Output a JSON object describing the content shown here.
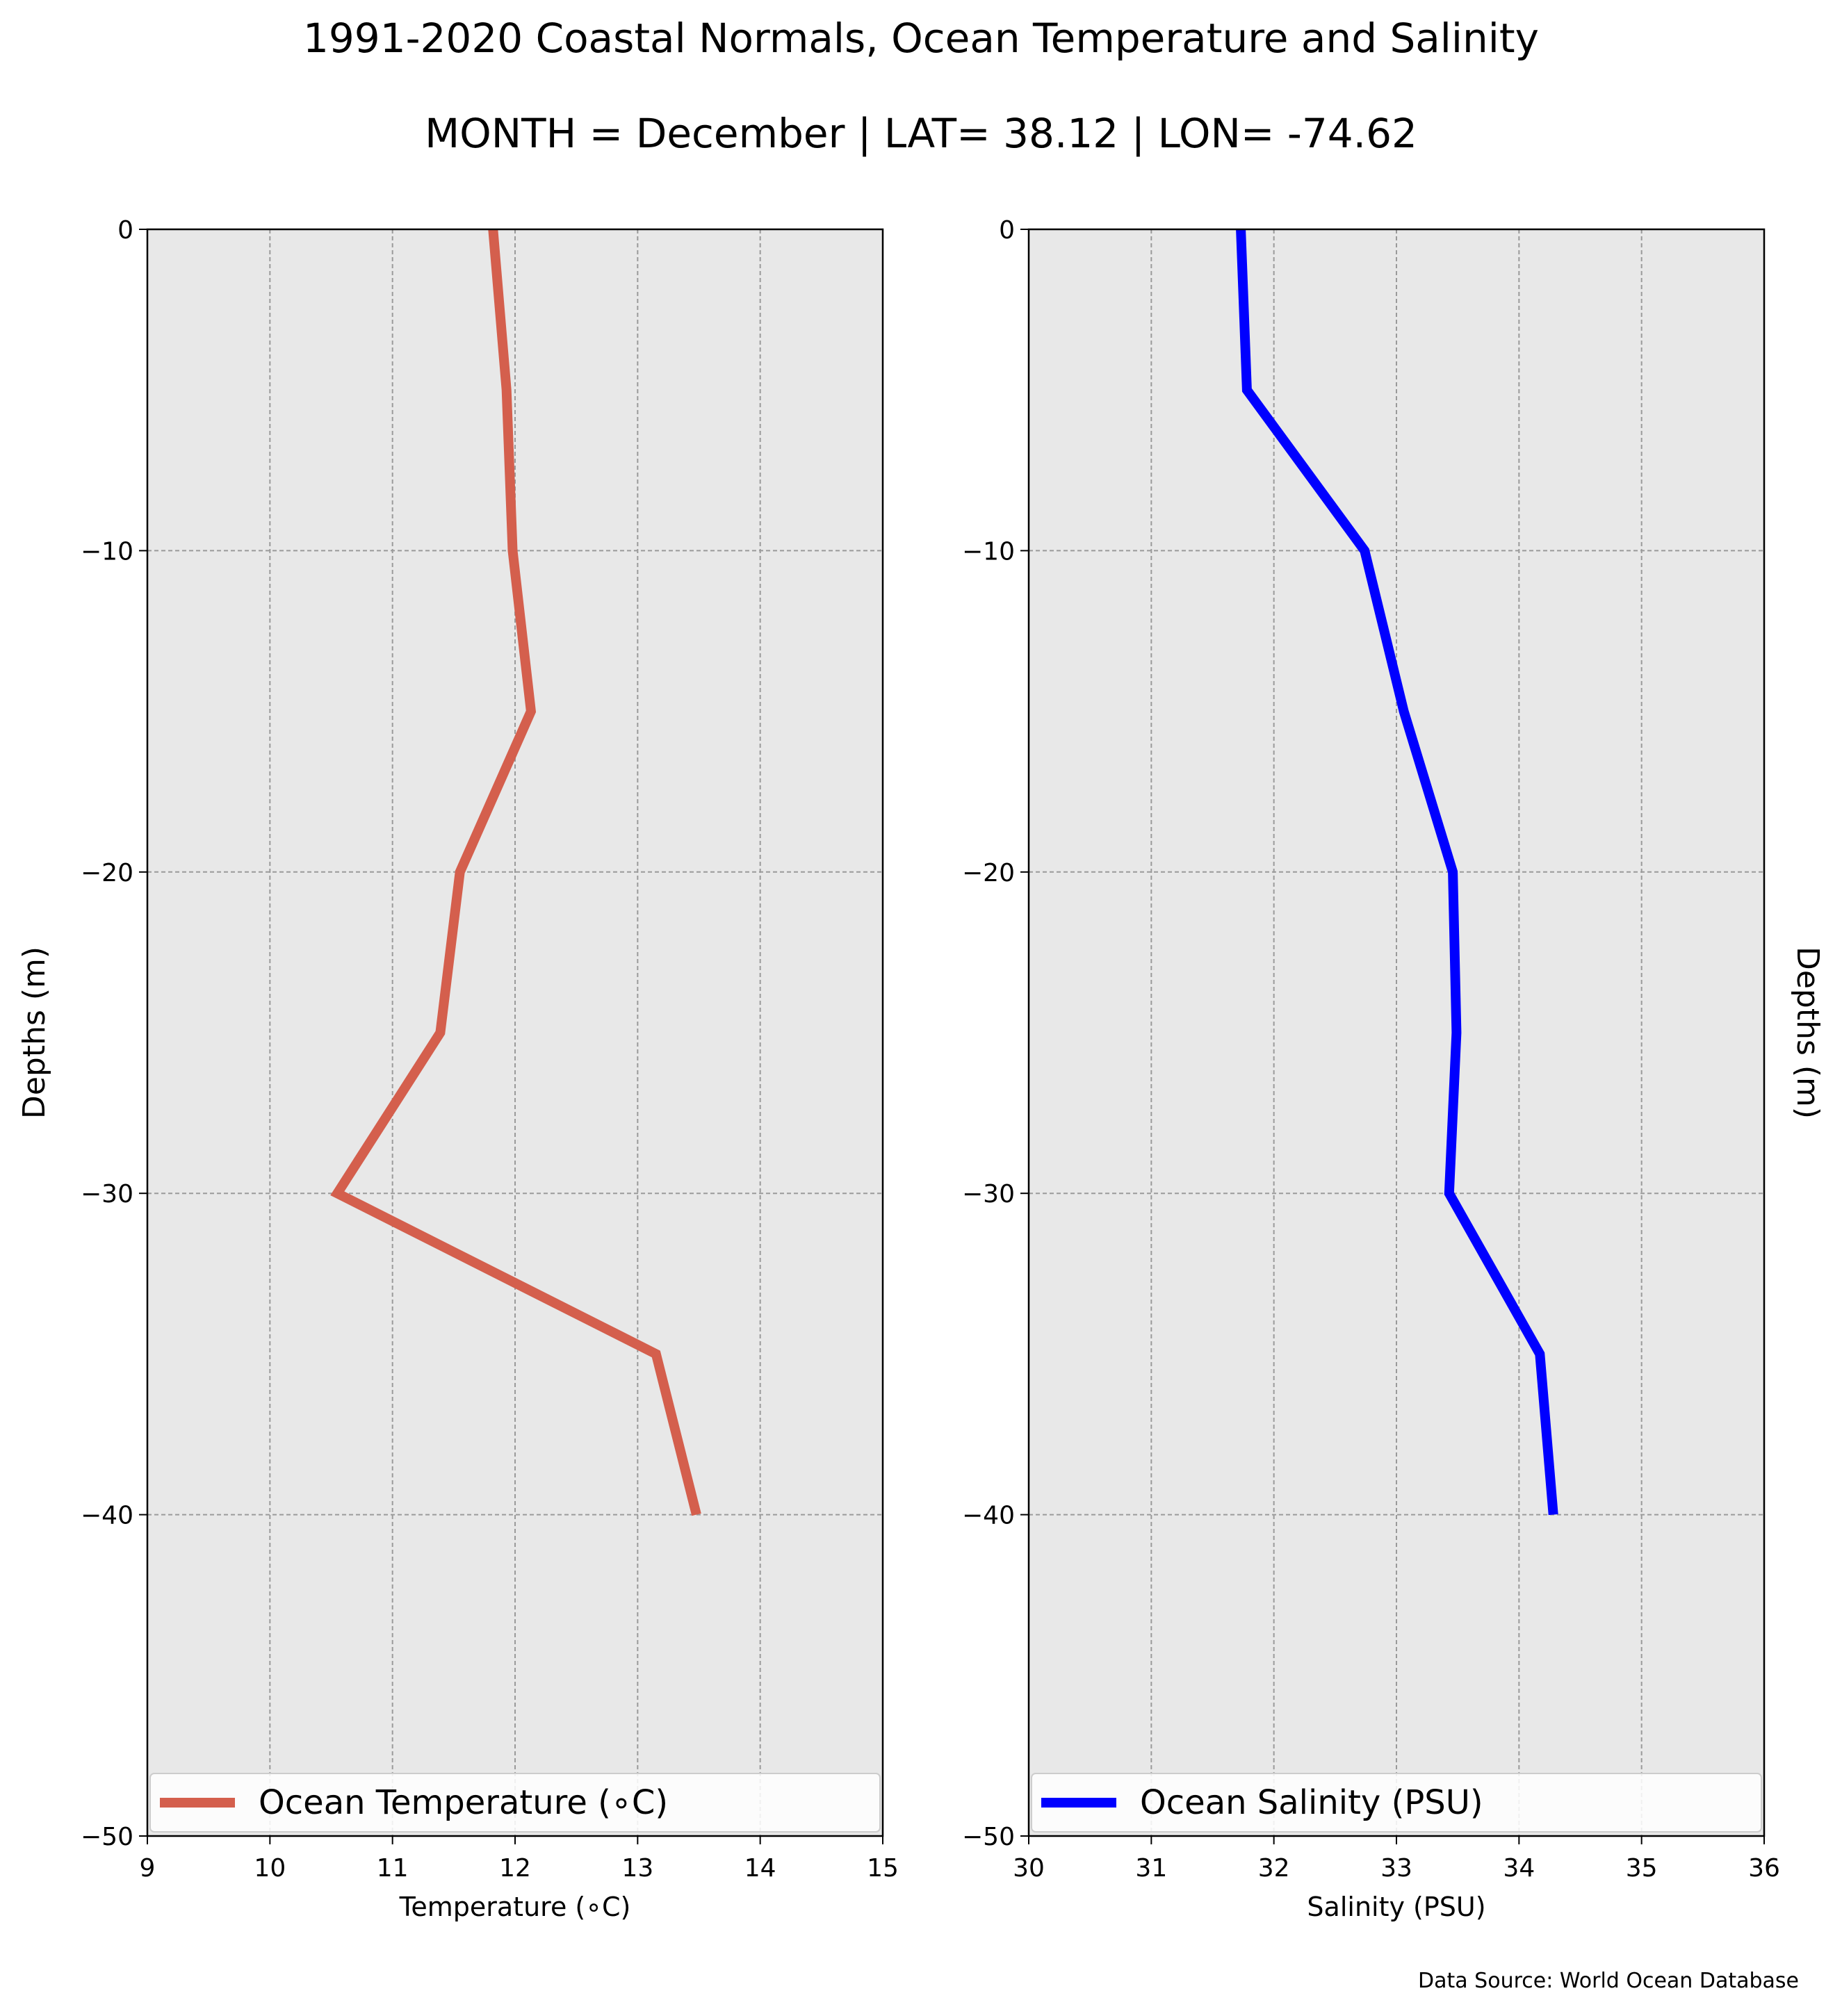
{
  "figure": {
    "title": "1991-2020 Coastal Normals, Ocean Temperature and Salinity",
    "subtitle": "MONTH = December | LAT= 38.12 | LON= -74.62",
    "source": "Data Source: World Ocean Database"
  },
  "chart_data": [
    {
      "type": "line",
      "xlabel": "Temperature (∘C)",
      "ylabel": "Depths (m)",
      "ylabel_side": "left",
      "xlim": [
        9,
        15
      ],
      "ylim": [
        -50,
        0
      ],
      "xticks": [
        "9",
        "10",
        "11",
        "12",
        "13",
        "14",
        "15"
      ],
      "yticks": [
        "−50",
        "−40",
        "−30",
        "−20",
        "−10",
        "0"
      ],
      "grid": true,
      "legend_position": "lower-center",
      "series": [
        {
          "name": "Ocean Temperature (∘C)",
          "color": "#d45f4d",
          "x": [
            11.82,
            11.93,
            11.98,
            12.13,
            11.55,
            11.39,
            10.55,
            13.15,
            13.48
          ],
          "y": [
            0,
            -5,
            -10,
            -15,
            -20,
            -25,
            -30,
            -35,
            -40
          ]
        }
      ]
    },
    {
      "type": "line",
      "xlabel": "Salinity (PSU)",
      "ylabel": "Depths (m)",
      "ylabel_side": "right",
      "xlim": [
        30,
        36
      ],
      "ylim": [
        -50,
        0
      ],
      "xticks": [
        "30",
        "31",
        "32",
        "33",
        "34",
        "35",
        "36"
      ],
      "yticks": [
        "−50",
        "−40",
        "−30",
        "−20",
        "−10",
        "0"
      ],
      "grid": true,
      "legend_position": "lower-center",
      "series": [
        {
          "name": "Ocean Salinity (PSU)",
          "color": "#0000ff",
          "x": [
            31.73,
            31.78,
            32.74,
            33.06,
            33.46,
            33.49,
            33.43,
            34.17,
            34.28
          ],
          "y": [
            0,
            -5,
            -10,
            -15,
            -20,
            -25,
            -30,
            -35,
            -40
          ]
        }
      ]
    }
  ]
}
